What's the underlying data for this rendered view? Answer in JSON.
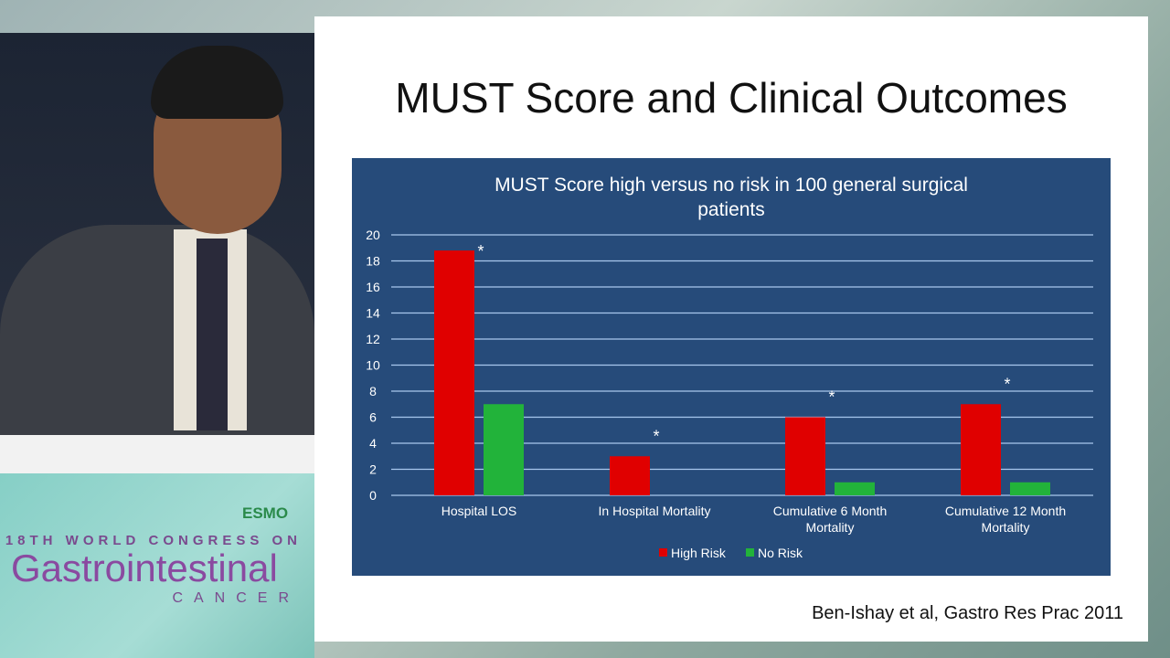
{
  "banner": {
    "edition": "18TH WORLD CONGRESS ON",
    "main": "Gastrointestinal",
    "sub": "CANCER",
    "logo": "ESMO"
  },
  "slide": {
    "title": "MUST Score and Clinical Outcomes",
    "citation": "Ben-Ishay et al, Gastro Res Prac 2011"
  },
  "chart_data": {
    "type": "bar",
    "title": "MUST Score high versus no risk in 100 general surgical patients",
    "title_lines": [
      "MUST Score high versus no risk in 100 general surgical",
      "patients"
    ],
    "categories": [
      [
        "Hospital LOS"
      ],
      [
        "In Hospital Mortality"
      ],
      [
        "Cumulative 6 Month",
        "Mortality"
      ],
      [
        "Cumulative 12 Month",
        "Mortality"
      ]
    ],
    "series": [
      {
        "name": "High Risk",
        "color": "#e00000",
        "values": [
          18.8,
          3,
          6,
          7
        ]
      },
      {
        "name": "No Risk",
        "color": "#22b33a",
        "values": [
          7,
          0,
          1,
          1
        ]
      }
    ],
    "annotations": [
      "*",
      "*",
      "*",
      "*"
    ],
    "ylim": [
      0,
      20
    ],
    "yticks": [
      0,
      2,
      4,
      6,
      8,
      10,
      12,
      14,
      16,
      18,
      20
    ],
    "grid": true,
    "legend": "bottom"
  }
}
